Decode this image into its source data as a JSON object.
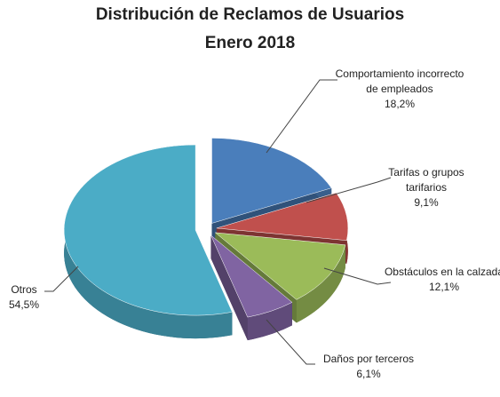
{
  "chart_data": {
    "type": "pie3d",
    "title": "Distribución  de Reclamos de Usuarios",
    "subtitle": "Enero 2018",
    "categories": [
      "Comportamiento incorrecto de empleados",
      "Tarifas o grupos tarifarios",
      "Obstáculos en la calzada",
      "Daños por terceros",
      "Otros"
    ],
    "values": [
      18.2,
      9.1,
      12.1,
      6.1,
      54.5
    ],
    "value_labels": [
      "18,2%",
      "9,1%",
      "12,1%",
      "6,1%",
      "54,5%"
    ],
    "colors": [
      "#4a7ebb",
      "#c0504d",
      "#9bbb59",
      "#8064a2",
      "#4bacc6"
    ]
  }
}
